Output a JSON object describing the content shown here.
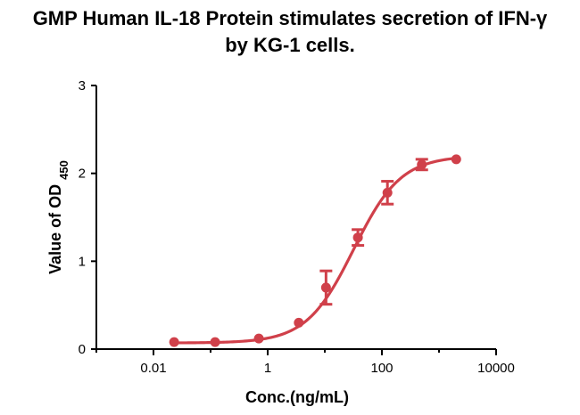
{
  "chart_data": {
    "type": "scatter",
    "title_lines": [
      "GMP Human IL-18 Protein stimulates secretion of IFN-γ",
      "by KG-1 cells."
    ],
    "xlabel": "Conc.(ng/mL)",
    "ylabel_main": "Value of OD",
    "ylabel_sub": "450",
    "x_scale": "log",
    "xlim": [
      0.001,
      10000
    ],
    "ylim": [
      0,
      3
    ],
    "x_ticks": [
      0.01,
      1,
      100,
      10000
    ],
    "x_tick_labels": [
      "0.01",
      "1",
      "100",
      "10000"
    ],
    "y_ticks": [
      0,
      1,
      2,
      3
    ],
    "y_tick_labels": [
      "0",
      "1",
      "2",
      "3"
    ],
    "series": [
      {
        "color": "#d0404a",
        "fit": "4PL",
        "points": [
          {
            "x": 0.023,
            "y": 0.08,
            "err": 0
          },
          {
            "x": 0.12,
            "y": 0.08,
            "err": 0
          },
          {
            "x": 0.7,
            "y": 0.12,
            "err": 0
          },
          {
            "x": 3.5,
            "y": 0.3,
            "err": 0
          },
          {
            "x": 10.5,
            "y": 0.7,
            "err": 0.19
          },
          {
            "x": 38,
            "y": 1.27,
            "err": 0.09
          },
          {
            "x": 125,
            "y": 1.78,
            "err": 0.13
          },
          {
            "x": 500,
            "y": 2.1,
            "err": 0.06
          },
          {
            "x": 2000,
            "y": 2.16,
            "err": 0
          }
        ]
      }
    ],
    "grid": false,
    "legend": "none"
  }
}
